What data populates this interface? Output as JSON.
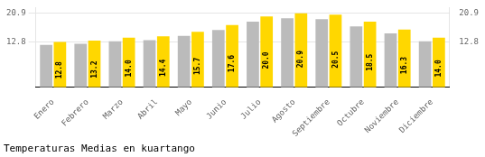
{
  "chart_data": {
    "type": "bar",
    "title": "Temperaturas Medias en kuartango",
    "categories": [
      "Enero",
      "Febrero",
      "Marzo",
      "Abril",
      "Mayo",
      "Junio",
      "Julio",
      "Agosto",
      "Septiembre",
      "Octubre",
      "Noviembre",
      "Diciembre"
    ],
    "series": [
      {
        "color": "#BBBBBB",
        "values": [
          12.0,
          12.3,
          13.0,
          13.3,
          14.5,
          16.2,
          18.5,
          19.5,
          19.2,
          17.2,
          15.2,
          13.0
        ]
      },
      {
        "color": "#FFD700",
        "values": [
          12.8,
          13.2,
          14.0,
          14.4,
          15.7,
          17.6,
          20.0,
          20.9,
          20.5,
          18.5,
          16.3,
          14.0
        ],
        "value_labels": [
          "12.8",
          "13.2",
          "14.0",
          "14.4",
          "15.7",
          "17.6",
          "20.0",
          "20.9",
          "20.5",
          "18.5",
          "16.3",
          "14.0"
        ],
        "data_labels": true
      }
    ],
    "ylim": [
      0,
      22.5
    ],
    "yticks": [
      12.8,
      20.9
    ],
    "y2lim": [
      0,
      22.5
    ],
    "y2ticks": [
      12.8,
      20.9
    ],
    "grid": true
  }
}
